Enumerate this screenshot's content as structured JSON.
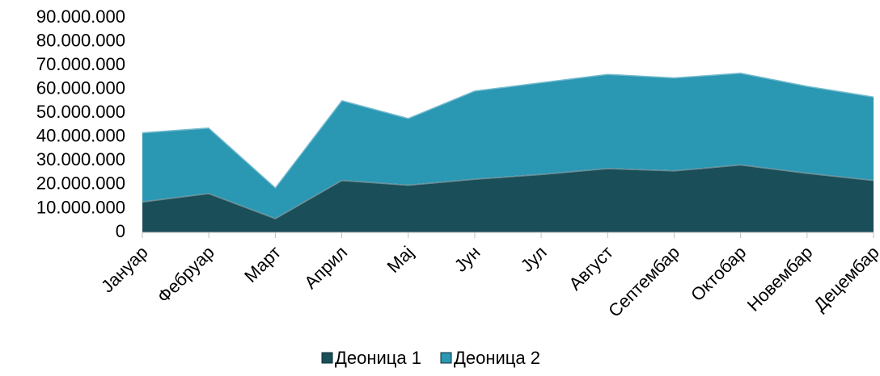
{
  "chart_data": {
    "type": "stacked_area",
    "categories": [
      "Јануар",
      "Фебруар",
      "Март",
      "Април",
      "Мај",
      "Јун",
      "Јул",
      "Август",
      "Септембар",
      "Октобар",
      "Новембар",
      "Децембар"
    ],
    "series": [
      {
        "name": "Деоница 1",
        "color": "#1a4e59",
        "values": [
          13000000,
          16500000,
          6000000,
          22000000,
          20000000,
          22500000,
          24500000,
          27000000,
          26000000,
          28500000,
          25000000,
          22000000
        ]
      },
      {
        "name": "Деоница 2",
        "color": "#2a97b3",
        "values": [
          29000000,
          27500000,
          13000000,
          33500000,
          28000000,
          37000000,
          38500000,
          39500000,
          39000000,
          38500000,
          36500000,
          35000000
        ]
      }
    ],
    "ylim": [
      0,
      90000000
    ],
    "yticks": [
      0,
      {
        "value": 10000000,
        "label": "10.000.000"
      },
      {
        "value": 20000000,
        "label": "20.000.000"
      },
      {
        "value": 30000000,
        "label": "30.000.000"
      },
      {
        "value": 40000000,
        "label": "40.000.000"
      },
      {
        "value": 50000000,
        "label": "50.000.000"
      },
      {
        "value": 60000000,
        "label": "60.000.000"
      },
      {
        "value": 70000000,
        "label": "70.000.000"
      },
      {
        "value": 80000000,
        "label": "80.000.000"
      },
      {
        "value": 90000000,
        "label": "90.000.000"
      }
    ],
    "legend": "bottom"
  }
}
